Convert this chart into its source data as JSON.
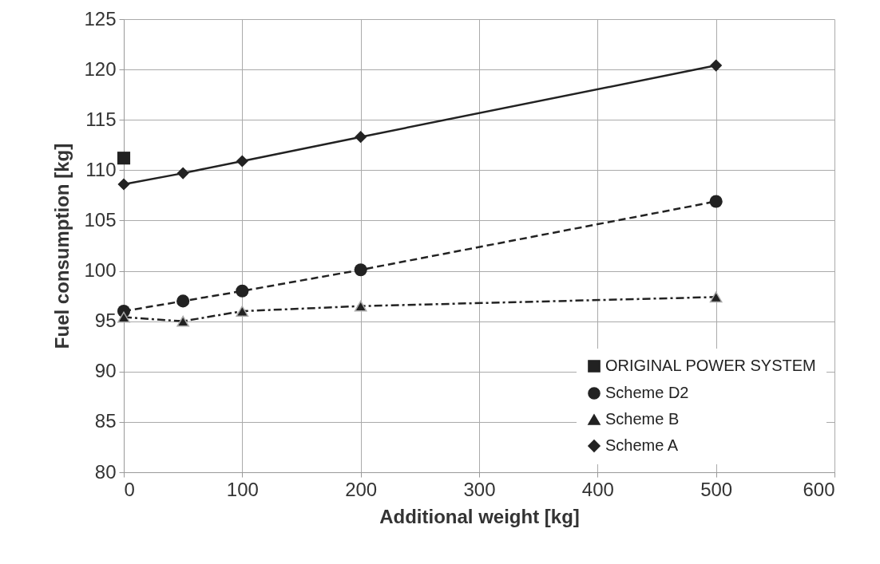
{
  "chart_data": {
    "type": "line",
    "xlabel": "Additional weight [kg]",
    "ylabel": "Fuel consumption [kg]",
    "x": [
      0,
      50,
      100,
      200,
      500
    ],
    "series": [
      {
        "name": "ORIGINAL POWER SYSTEM",
        "type": "scatter",
        "x": [
          0
        ],
        "values": [
          111.2
        ],
        "color": "#222222",
        "marker": "square"
      },
      {
        "name": "Scheme D2",
        "type": "line",
        "values": [
          96.0,
          97.0,
          98.0,
          100.1,
          106.9
        ],
        "color": "#222222",
        "marker": "circle",
        "line_style": "dashed"
      },
      {
        "name": "Scheme B",
        "type": "line",
        "values": [
          95.4,
          95.0,
          96.0,
          96.5,
          97.4
        ],
        "color": "#222222",
        "marker": "triangle",
        "line_style": "dashdot"
      },
      {
        "name": "Scheme A",
        "type": "line",
        "values": [
          108.6,
          109.7,
          110.9,
          113.3,
          120.4
        ],
        "color": "#222222",
        "marker": "diamond",
        "line_style": "solid"
      }
    ],
    "xlim": [
      0,
      600
    ],
    "xticks": [
      0,
      100,
      200,
      300,
      400,
      500,
      600
    ],
    "ylim": [
      80,
      125
    ],
    "yticks": [
      80,
      85,
      90,
      95,
      100,
      105,
      110,
      115,
      120,
      125
    ],
    "grid": true,
    "legend": "bottom right"
  }
}
